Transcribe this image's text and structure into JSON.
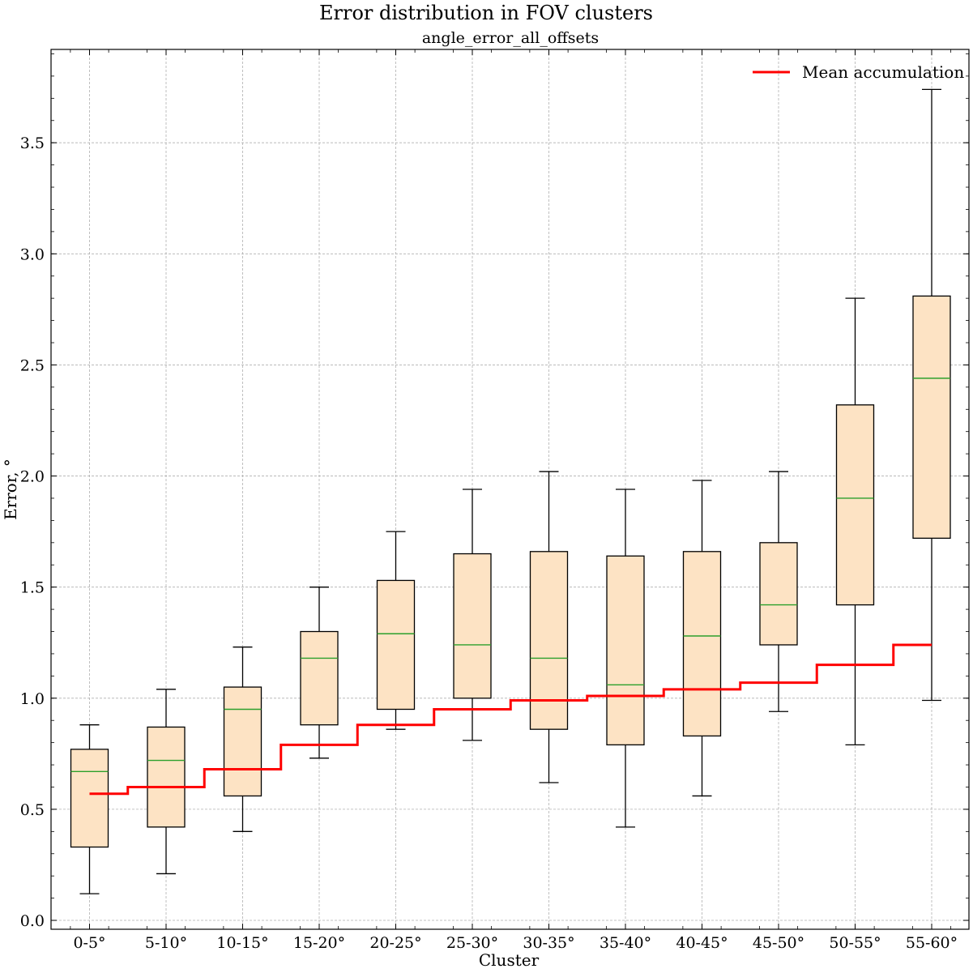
{
  "chart_data": {
    "type": "box",
    "title": "Error distribution in FOV clusters",
    "subtitle": "angle_error_all_offsets",
    "xlabel": "Cluster",
    "ylabel": "Error, °",
    "ylim": [
      -0.04,
      3.92
    ],
    "yticks": [
      "0.0",
      "0.5",
      "1.0",
      "1.5",
      "2.0",
      "2.5",
      "3.0",
      "3.5"
    ],
    "ytick_values": [
      0.0,
      0.5,
      1.0,
      1.5,
      2.0,
      2.5,
      3.0,
      3.5
    ],
    "grid": true,
    "legend_position": "top-right",
    "categories": [
      "0-5°",
      "5-10°",
      "10-15°",
      "15-20°",
      "20-25°",
      "25-30°",
      "30-35°",
      "35-40°",
      "40-45°",
      "45-50°",
      "50-55°",
      "55-60°"
    ],
    "boxes": [
      {
        "whisker_low": 0.12,
        "q1": 0.33,
        "median": 0.67,
        "q3": 0.77,
        "whisker_high": 0.88
      },
      {
        "whisker_low": 0.21,
        "q1": 0.42,
        "median": 0.72,
        "q3": 0.87,
        "whisker_high": 1.04
      },
      {
        "whisker_low": 0.4,
        "q1": 0.56,
        "median": 0.95,
        "q3": 1.05,
        "whisker_high": 1.23
      },
      {
        "whisker_low": 0.73,
        "q1": 0.88,
        "median": 1.18,
        "q3": 1.3,
        "whisker_high": 1.5
      },
      {
        "whisker_low": 0.86,
        "q1": 0.95,
        "median": 1.29,
        "q3": 1.53,
        "whisker_high": 1.75
      },
      {
        "whisker_low": 0.81,
        "q1": 1.0,
        "median": 1.24,
        "q3": 1.65,
        "whisker_high": 1.94
      },
      {
        "whisker_low": 0.62,
        "q1": 0.86,
        "median": 1.18,
        "q3": 1.66,
        "whisker_high": 2.02
      },
      {
        "whisker_low": 0.42,
        "q1": 0.79,
        "median": 1.06,
        "q3": 1.64,
        "whisker_high": 1.94
      },
      {
        "whisker_low": 0.56,
        "q1": 0.83,
        "median": 1.28,
        "q3": 1.66,
        "whisker_high": 1.98
      },
      {
        "whisker_low": 0.94,
        "q1": 1.24,
        "median": 1.42,
        "q3": 1.7,
        "whisker_high": 2.02
      },
      {
        "whisker_low": 0.79,
        "q1": 1.42,
        "median": 1.9,
        "q3": 2.32,
        "whisker_high": 2.8
      },
      {
        "whisker_low": 0.99,
        "q1": 1.72,
        "median": 2.44,
        "q3": 2.81,
        "whisker_high": 3.74
      }
    ],
    "mean_accumulation": {
      "name": "Mean accumulation",
      "values": [
        0.57,
        0.6,
        0.68,
        0.79,
        0.88,
        0.95,
        0.99,
        1.01,
        1.04,
        1.07,
        1.15,
        1.24
      ]
    },
    "colors": {
      "box_fill": "#fde3c4",
      "box_edge": "#000000",
      "median": "#2ca02c",
      "mean_line": "#ff0000",
      "grid": "#b0b0b0"
    }
  }
}
